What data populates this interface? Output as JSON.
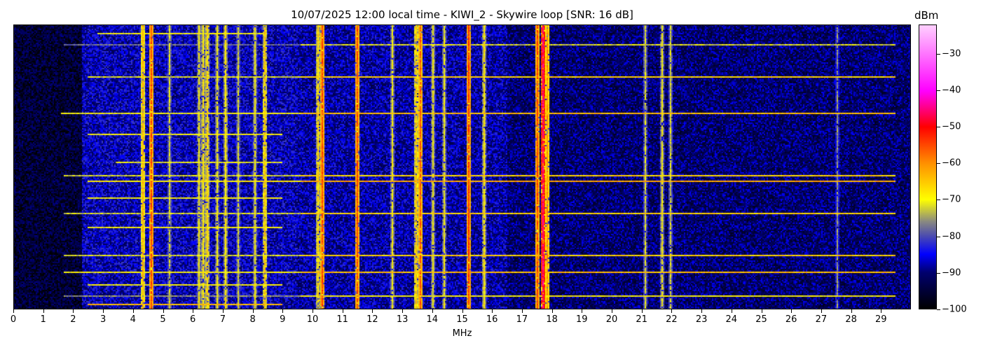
{
  "chart_data": {
    "type": "heatmap",
    "title": "10/07/2025 12:00 local time - KIWI_2 - Skywire loop [SNR: 16 dB]",
    "xlabel": "MHz",
    "ylabel": "",
    "xlim": [
      0,
      30
    ],
    "x_ticks": [
      "0",
      "1",
      "2",
      "3",
      "4",
      "5",
      "6",
      "7",
      "8",
      "9",
      "10",
      "11",
      "12",
      "13",
      "14",
      "15",
      "16",
      "17",
      "18",
      "19",
      "20",
      "21",
      "22",
      "23",
      "24",
      "25",
      "26",
      "27",
      "28",
      "29"
    ],
    "colorbar": {
      "label": "dBm",
      "range": [
        -100,
        -22
      ],
      "ticks": [
        "-30",
        "-40",
        "-50",
        "-60",
        "-70",
        "-80",
        "-90",
        "-100"
      ],
      "colormap_stops": [
        {
          "dbm": -100,
          "color": "#000000"
        },
        {
          "dbm": -90,
          "color": "#00006e"
        },
        {
          "dbm": -85,
          "color": "#0000ff"
        },
        {
          "dbm": -80,
          "color": "#4a4ab0"
        },
        {
          "dbm": -76,
          "color": "#8a8a80"
        },
        {
          "dbm": -70,
          "color": "#ffff00"
        },
        {
          "dbm": -60,
          "color": "#ff9000"
        },
        {
          "dbm": -50,
          "color": "#ff0000"
        },
        {
          "dbm": -40,
          "color": "#ff00ff"
        },
        {
          "dbm": -22,
          "color": "#ffd0ff"
        }
      ]
    },
    "noise_floor_dbm": [
      {
        "from_mhz": 0,
        "to_mhz": 2.3,
        "dbm": -95
      },
      {
        "from_mhz": 2.3,
        "to_mhz": 9.5,
        "dbm": -87
      },
      {
        "from_mhz": 9.5,
        "to_mhz": 16.5,
        "dbm": -88
      },
      {
        "from_mhz": 16.5,
        "to_mhz": 30,
        "dbm": -91
      }
    ],
    "carriers": [
      {
        "mhz": 4.3,
        "dbm": -63
      },
      {
        "mhz": 4.6,
        "dbm": -55
      },
      {
        "mhz": 5.2,
        "dbm": -72
      },
      {
        "mhz": 6.2,
        "dbm": -70
      },
      {
        "mhz": 6.35,
        "dbm": -68
      },
      {
        "mhz": 6.45,
        "dbm": -66
      },
      {
        "mhz": 6.8,
        "dbm": -70
      },
      {
        "mhz": 7.1,
        "dbm": -68
      },
      {
        "mhz": 7.5,
        "dbm": -72
      },
      {
        "mhz": 8.05,
        "dbm": -70
      },
      {
        "mhz": 8.4,
        "dbm": -65
      },
      {
        "mhz": 10.15,
        "dbm": -66
      },
      {
        "mhz": 10.3,
        "dbm": -55
      },
      {
        "mhz": 11.5,
        "dbm": -55
      },
      {
        "mhz": 12.65,
        "dbm": -70
      },
      {
        "mhz": 13.45,
        "dbm": -65
      },
      {
        "mhz": 13.6,
        "dbm": -56
      },
      {
        "mhz": 14.0,
        "dbm": -70
      },
      {
        "mhz": 14.4,
        "dbm": -70
      },
      {
        "mhz": 15.2,
        "dbm": -54
      },
      {
        "mhz": 15.7,
        "dbm": -68
      },
      {
        "mhz": 17.5,
        "dbm": -55
      },
      {
        "mhz": 17.65,
        "dbm": -45
      },
      {
        "mhz": 17.8,
        "dbm": -60
      },
      {
        "mhz": 21.1,
        "dbm": -72
      },
      {
        "mhz": 21.65,
        "dbm": -70
      },
      {
        "mhz": 21.95,
        "dbm": -72
      },
      {
        "mhz": 27.5,
        "dbm": -76
      }
    ],
    "horizontal_streaks": [
      {
        "time_row": 3,
        "from_mhz": 2.8,
        "to_mhz": 8.5,
        "dbm": -70
      },
      {
        "time_row": 7,
        "from_mhz": 1.7,
        "to_mhz": 29.5,
        "dbm": -78
      },
      {
        "time_row": 18,
        "from_mhz": 2.5,
        "to_mhz": 29.5,
        "dbm": -72
      },
      {
        "time_row": 31,
        "from_mhz": 1.6,
        "to_mhz": 29.5,
        "dbm": -70
      },
      {
        "time_row": 38,
        "from_mhz": 2.5,
        "to_mhz": 9,
        "dbm": -70
      },
      {
        "time_row": 48,
        "from_mhz": 3.4,
        "to_mhz": 9,
        "dbm": -71
      },
      {
        "time_row": 53,
        "from_mhz": 1.7,
        "to_mhz": 29.5,
        "dbm": -72
      },
      {
        "time_row": 55,
        "from_mhz": 2.5,
        "to_mhz": 29.5,
        "dbm": -68
      },
      {
        "time_row": 61,
        "from_mhz": 2.5,
        "to_mhz": 9,
        "dbm": -70
      },
      {
        "time_row": 66,
        "from_mhz": 1.7,
        "to_mhz": 29.5,
        "dbm": -72
      },
      {
        "time_row": 71,
        "from_mhz": 2.5,
        "to_mhz": 9,
        "dbm": -70
      },
      {
        "time_row": 81,
        "from_mhz": 1.7,
        "to_mhz": 29.5,
        "dbm": -72
      },
      {
        "time_row": 87,
        "from_mhz": 1.7,
        "to_mhz": 29.5,
        "dbm": -70
      },
      {
        "time_row": 91,
        "from_mhz": 2.5,
        "to_mhz": 9,
        "dbm": -70
      },
      {
        "time_row": 95,
        "from_mhz": 1.7,
        "to_mhz": 29.5,
        "dbm": -76
      },
      {
        "time_row": 98,
        "from_mhz": 2.5,
        "to_mhz": 9,
        "dbm": -64
      }
    ],
    "time_rows": 100,
    "grid": false,
    "legend": "colorbar-right"
  }
}
